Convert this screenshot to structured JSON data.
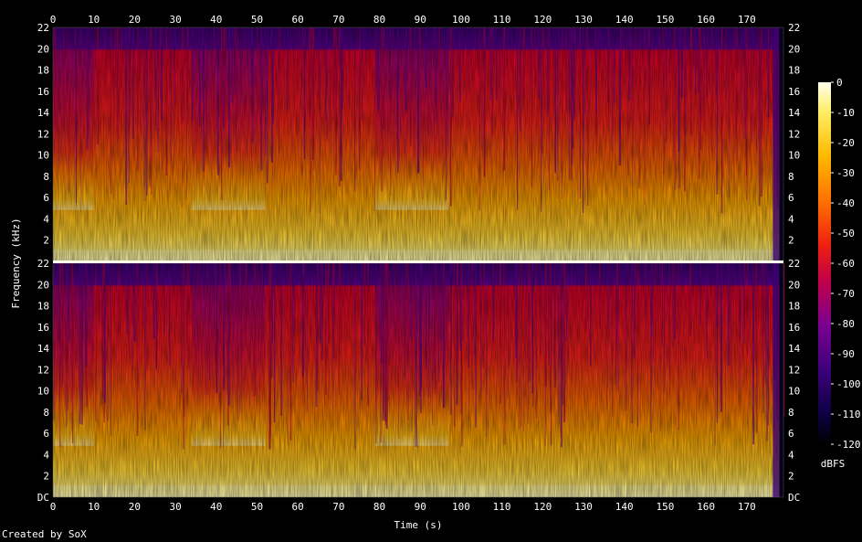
{
  "chart_data": {
    "type": "heatmap",
    "title": "",
    "credit": "Created by SoX",
    "xlabel": "Time (s)",
    "ylabel": "Frequency (kHz)",
    "x_range": [
      0,
      179
    ],
    "x_ticks": [
      "0",
      "10",
      "20",
      "30",
      "40",
      "50",
      "60",
      "70",
      "80",
      "90",
      "100",
      "110",
      "120",
      "130",
      "140",
      "150",
      "160",
      "170"
    ],
    "y_range": [
      0,
      22
    ],
    "y_ticks": [
      "DC",
      "2",
      "4",
      "6",
      "8",
      "10",
      "12",
      "14",
      "16",
      "18",
      "20",
      "22"
    ],
    "channels": 2,
    "colorbar": {
      "label": "dBFS",
      "range": [
        -120,
        0
      ],
      "ticks": [
        "0",
        "-10",
        "-20",
        "-30",
        "-40",
        "-50",
        "-60",
        "-70",
        "-80",
        "-90",
        "-100",
        "-110",
        "-120"
      ]
    },
    "colors": {
      "background": "#000000",
      "text": "#ffffff",
      "palette": [
        "#000000",
        "#100036",
        "#3a0070",
        "#6c0090",
        "#a0006a",
        "#d5002a",
        "#f03010",
        "#ff7a00",
        "#ffbe00",
        "#ffee55",
        "#ffffdd"
      ]
    },
    "louder_segments_s": [
      [
        10,
        34
      ],
      [
        52,
        79
      ],
      [
        97,
        124
      ],
      [
        124,
        178
      ]
    ],
    "quieter_segments_s": [
      [
        0,
        10
      ],
      [
        34,
        52
      ],
      [
        79,
        97
      ]
    ]
  }
}
